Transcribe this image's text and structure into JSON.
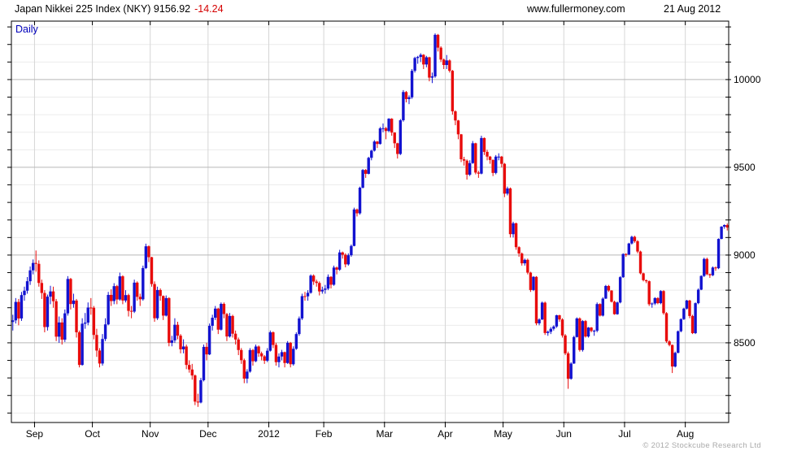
{
  "header": {
    "title": "Japan Nikkei 225 Index (NKY) 9156.92",
    "change": "-14.24",
    "website": "www.fullermoney.com",
    "date": "21 Aug 2012"
  },
  "chart_data": {
    "type": "candlestick",
    "title": "Japan Nikkei 225 Index (NKY)",
    "frequency": "Daily",
    "copyright": "© 2012 Stockcube Research Ltd",
    "last_price": 9156.92,
    "change": -14.24,
    "colors": {
      "up": "#1212d0",
      "down": "#e80b0b",
      "grid_minor": "#ececec",
      "grid_major": "#b8b8b8",
      "grid_month": "#d6d6d6",
      "frame": "#000000",
      "frequency_label": "#0000bb",
      "title_change": "#d40000",
      "copyright": "#aaaaaa"
    },
    "y_axis": {
      "side": "right",
      "tick_labels": [
        10000,
        9500,
        9000,
        8500
      ],
      "minor_step": 100,
      "range": [
        8046,
        10333
      ]
    },
    "x_axis": {
      "labels": [
        "Sep",
        "Oct",
        "Nov",
        "Dec",
        "2012",
        "Feb",
        "Mar",
        "Apr",
        "May",
        "Jun",
        "Jul",
        "Aug"
      ],
      "month_start_indices": [
        8,
        28,
        48,
        68,
        89,
        108,
        129,
        150,
        170,
        191,
        212,
        233
      ]
    },
    "candles": [
      [
        8619,
        8660,
        8570,
        8628
      ],
      [
        8628,
        8755,
        8610,
        8733
      ],
      [
        8733,
        8750,
        8600,
        8639
      ],
      [
        8639,
        8790,
        8625,
        8772
      ],
      [
        8772,
        8820,
        8740,
        8797
      ],
      [
        8797,
        8875,
        8780,
        8851
      ],
      [
        8851,
        8935,
        8830,
        8913
      ],
      [
        8913,
        8975,
        8890,
        8955
      ],
      [
        8955,
        9026,
        8905,
        8950
      ],
      [
        8950,
        8970,
        8820,
        8841
      ],
      [
        8841,
        8860,
        8750,
        8784
      ],
      [
        8784,
        8800,
        8560,
        8590
      ],
      [
        8590,
        8775,
        8570,
        8763
      ],
      [
        8763,
        8825,
        8720,
        8793
      ],
      [
        8793,
        8820,
        8700,
        8737
      ],
      [
        8737,
        8750,
        8510,
        8535
      ],
      [
        8535,
        8650,
        8500,
        8616
      ],
      [
        8616,
        8640,
        8490,
        8518
      ],
      [
        8518,
        8690,
        8505,
        8668
      ],
      [
        8668,
        8880,
        8655,
        8864
      ],
      [
        8864,
        8870,
        8690,
        8721
      ],
      [
        8721,
        8780,
        8700,
        8741
      ],
      [
        8741,
        8750,
        8530,
        8560
      ],
      [
        8560,
        8570,
        8360,
        8374
      ],
      [
        8374,
        8640,
        8370,
        8609
      ],
      [
        8609,
        8670,
        8580,
        8615
      ],
      [
        8615,
        8730,
        8600,
        8701
      ],
      [
        8701,
        8755,
        8660,
        8700
      ],
      [
        8700,
        8710,
        8520,
        8545
      ],
      [
        8545,
        8580,
        8420,
        8456
      ],
      [
        8456,
        8470,
        8360,
        8382
      ],
      [
        8382,
        8550,
        8370,
        8522
      ],
      [
        8522,
        8640,
        8510,
        8605
      ],
      [
        8605,
        8790,
        8600,
        8773
      ],
      [
        8773,
        8805,
        8710,
        8738
      ],
      [
        8738,
        8840,
        8720,
        8823
      ],
      [
        8823,
        8830,
        8720,
        8747
      ],
      [
        8747,
        8900,
        8740,
        8879
      ],
      [
        8879,
        8885,
        8720,
        8741
      ],
      [
        8741,
        8800,
        8730,
        8772
      ],
      [
        8772,
        8780,
        8650,
        8682
      ],
      [
        8682,
        8710,
        8640,
        8678
      ],
      [
        8678,
        8860,
        8670,
        8843
      ],
      [
        8843,
        8850,
        8740,
        8762
      ],
      [
        8762,
        8780,
        8710,
        8748
      ],
      [
        8748,
        8940,
        8740,
        8926
      ],
      [
        8926,
        9065,
        8920,
        9050
      ],
      [
        9050,
        9055,
        8960,
        8988
      ],
      [
        8988,
        8990,
        8820,
        8835
      ],
      [
        8835,
        8850,
        8620,
        8640
      ],
      [
        8640,
        8820,
        8630,
        8801
      ],
      [
        8801,
        8810,
        8740,
        8767
      ],
      [
        8767,
        8770,
        8630,
        8655
      ],
      [
        8655,
        8770,
        8650,
        8755
      ],
      [
        8755,
        8760,
        8480,
        8500
      ],
      [
        8500,
        8540,
        8480,
        8514
      ],
      [
        8514,
        8640,
        8500,
        8603
      ],
      [
        8603,
        8620,
        8520,
        8541
      ],
      [
        8541,
        8550,
        8440,
        8463
      ],
      [
        8463,
        8520,
        8440,
        8479
      ],
      [
        8479,
        8490,
        8350,
        8374
      ],
      [
        8374,
        8400,
        8330,
        8348
      ],
      [
        8348,
        8380,
        8290,
        8314
      ],
      [
        8314,
        8320,
        8145,
        8165
      ],
      [
        8165,
        8210,
        8135,
        8160
      ],
      [
        8160,
        8300,
        8155,
        8287
      ],
      [
        8287,
        8490,
        8280,
        8477
      ],
      [
        8477,
        8500,
        8400,
        8434
      ],
      [
        8434,
        8610,
        8430,
        8597
      ],
      [
        8597,
        8660,
        8570,
        8643
      ],
      [
        8643,
        8710,
        8630,
        8695
      ],
      [
        8695,
        8700,
        8550,
        8575
      ],
      [
        8575,
        8730,
        8570,
        8722
      ],
      [
        8722,
        8730,
        8640,
        8664
      ],
      [
        8664,
        8670,
        8510,
        8536
      ],
      [
        8536,
        8670,
        8530,
        8653
      ],
      [
        8653,
        8660,
        8530,
        8552
      ],
      [
        8552,
        8570,
        8490,
        8519
      ],
      [
        8519,
        8530,
        8430,
        8459
      ],
      [
        8459,
        8470,
        8380,
        8401
      ],
      [
        8401,
        8410,
        8270,
        8296
      ],
      [
        8296,
        8350,
        8270,
        8336
      ],
      [
        8336,
        8470,
        8330,
        8459
      ],
      [
        8459,
        8465,
        8370,
        8395
      ],
      [
        8395,
        8490,
        8390,
        8479
      ],
      [
        8479,
        8485,
        8420,
        8440
      ],
      [
        8440,
        8450,
        8400,
        8423
      ],
      [
        8423,
        8430,
        8380,
        8398
      ],
      [
        8398,
        8470,
        8390,
        8455
      ],
      [
        8455,
        8570,
        8450,
        8560
      ],
      [
        8560,
        8565,
        8470,
        8488
      ],
      [
        8488,
        8500,
        8370,
        8390
      ],
      [
        8390,
        8440,
        8360,
        8422
      ],
      [
        8422,
        8460,
        8400,
        8447
      ],
      [
        8447,
        8450,
        8360,
        8385
      ],
      [
        8385,
        8510,
        8380,
        8500
      ],
      [
        8500,
        8505,
        8360,
        8378
      ],
      [
        8378,
        8480,
        8370,
        8466
      ],
      [
        8466,
        8560,
        8460,
        8550
      ],
      [
        8550,
        8650,
        8540,
        8639
      ],
      [
        8639,
        8780,
        8630,
        8766
      ],
      [
        8766,
        8790,
        8740,
        8765
      ],
      [
        8765,
        8800,
        8740,
        8785
      ],
      [
        8785,
        8890,
        8780,
        8883
      ],
      [
        8883,
        8890,
        8830,
        8849
      ],
      [
        8849,
        8860,
        8820,
        8841
      ],
      [
        8841,
        8850,
        8770,
        8793
      ],
      [
        8793,
        8820,
        8780,
        8802
      ],
      [
        8802,
        8830,
        8780,
        8809
      ],
      [
        8809,
        8890,
        8800,
        8876
      ],
      [
        8876,
        8880,
        8810,
        8831
      ],
      [
        8831,
        8940,
        8825,
        8929
      ],
      [
        8929,
        8935,
        8890,
        8917
      ],
      [
        8917,
        9030,
        8910,
        9015
      ],
      [
        9015,
        9020,
        8980,
        9002
      ],
      [
        9002,
        9010,
        8930,
        8947
      ],
      [
        8947,
        9010,
        8940,
        8999
      ],
      [
        8999,
        9060,
        8990,
        9052
      ],
      [
        9052,
        9270,
        9050,
        9260
      ],
      [
        9260,
        9265,
        9220,
        9238
      ],
      [
        9238,
        9390,
        9230,
        9384
      ],
      [
        9384,
        9490,
        9380,
        9485
      ],
      [
        9485,
        9490,
        9440,
        9463
      ],
      [
        9463,
        9560,
        9460,
        9554
      ],
      [
        9554,
        9600,
        9540,
        9595
      ],
      [
        9595,
        9655,
        9590,
        9647
      ],
      [
        9647,
        9650,
        9610,
        9633
      ],
      [
        9633,
        9730,
        9630,
        9722
      ],
      [
        9722,
        9750,
        9700,
        9723
      ],
      [
        9723,
        9730,
        9660,
        9707
      ],
      [
        9707,
        9780,
        9700,
        9777
      ],
      [
        9777,
        9780,
        9680,
        9698
      ],
      [
        9698,
        9700,
        9610,
        9637
      ],
      [
        9637,
        9640,
        9550,
        9576
      ],
      [
        9576,
        9775,
        9570,
        9768
      ],
      [
        9768,
        9940,
        9760,
        9929
      ],
      [
        9929,
        9935,
        9870,
        9889
      ],
      [
        9889,
        9910,
        9860,
        9899
      ],
      [
        9899,
        10060,
        9890,
        10050
      ],
      [
        10050,
        10130,
        10040,
        10123
      ],
      [
        10123,
        10135,
        10090,
        10129
      ],
      [
        10129,
        10150,
        10100,
        10141
      ],
      [
        10141,
        10145,
        10060,
        10086
      ],
      [
        10086,
        10135,
        10070,
        10127
      ],
      [
        10127,
        10130,
        9990,
        10011
      ],
      [
        10011,
        10040,
        9980,
        10018
      ],
      [
        10018,
        10263,
        10010,
        10255
      ],
      [
        10255,
        10260,
        10160,
        10182
      ],
      [
        10182,
        10190,
        10100,
        10114
      ],
      [
        10114,
        10120,
        10060,
        10083
      ],
      [
        10083,
        10140,
        10060,
        10109
      ],
      [
        10109,
        10115,
        10040,
        10050
      ],
      [
        10050,
        10055,
        9800,
        9819
      ],
      [
        9819,
        9825,
        9740,
        9767
      ],
      [
        9767,
        9770,
        9660,
        9688
      ],
      [
        9688,
        9690,
        9530,
        9546
      ],
      [
        9546,
        9560,
        9510,
        9538
      ],
      [
        9538,
        9545,
        9430,
        9458
      ],
      [
        9458,
        9540,
        9450,
        9524
      ],
      [
        9524,
        9650,
        9520,
        9637
      ],
      [
        9637,
        9640,
        9460,
        9470
      ],
      [
        9470,
        9480,
        9440,
        9464
      ],
      [
        9464,
        9680,
        9460,
        9667
      ],
      [
        9667,
        9670,
        9570,
        9588
      ],
      [
        9588,
        9600,
        9540,
        9561
      ],
      [
        9561,
        9565,
        9520,
        9542
      ],
      [
        9542,
        9545,
        9450,
        9468
      ],
      [
        9468,
        9570,
        9460,
        9561
      ],
      [
        9561,
        9580,
        9540,
        9561
      ],
      [
        9561,
        9565,
        9500,
        9520
      ],
      [
        9520,
        9525,
        9330,
        9350
      ],
      [
        9350,
        9390,
        9340,
        9380
      ],
      [
        9380,
        9385,
        9100,
        9119
      ],
      [
        9119,
        9190,
        9100,
        9181
      ],
      [
        9181,
        9185,
        9030,
        9045
      ],
      [
        9045,
        9050,
        8990,
        9009
      ],
      [
        9009,
        9015,
        8940,
        8953
      ],
      [
        8953,
        8980,
        8940,
        8973
      ],
      [
        8973,
        8980,
        8890,
        8900
      ],
      [
        8900,
        8905,
        8790,
        8801
      ],
      [
        8801,
        8880,
        8795,
        8876
      ],
      [
        8876,
        8880,
        8600,
        8611
      ],
      [
        8611,
        8640,
        8600,
        8633
      ],
      [
        8633,
        8735,
        8630,
        8729
      ],
      [
        8729,
        8735,
        8545,
        8556
      ],
      [
        8556,
        8570,
        8540,
        8563
      ],
      [
        8563,
        8590,
        8550,
        8580
      ],
      [
        8580,
        8600,
        8570,
        8593
      ],
      [
        8593,
        8660,
        8585,
        8657
      ],
      [
        8657,
        8660,
        8620,
        8633
      ],
      [
        8633,
        8640,
        8530,
        8542
      ],
      [
        8542,
        8550,
        8430,
        8440
      ],
      [
        8440,
        8450,
        8238,
        8295
      ],
      [
        8295,
        8390,
        8290,
        8382
      ],
      [
        8382,
        8540,
        8380,
        8533
      ],
      [
        8533,
        8645,
        8530,
        8639
      ],
      [
        8639,
        8645,
        8450,
        8459
      ],
      [
        8459,
        8630,
        8450,
        8624
      ],
      [
        8624,
        8630,
        8530,
        8536
      ],
      [
        8536,
        8590,
        8530,
        8587
      ],
      [
        8587,
        8590,
        8560,
        8568
      ],
      [
        8568,
        8575,
        8540,
        8569
      ],
      [
        8569,
        8730,
        8560,
        8721
      ],
      [
        8721,
        8725,
        8650,
        8655
      ],
      [
        8655,
        8760,
        8650,
        8752
      ],
      [
        8752,
        8830,
        8750,
        8824
      ],
      [
        8824,
        8830,
        8790,
        8798
      ],
      [
        8798,
        8800,
        8730,
        8734
      ],
      [
        8734,
        8740,
        8660,
        8663
      ],
      [
        8663,
        8735,
        8660,
        8730
      ],
      [
        8730,
        8880,
        8725,
        8874
      ],
      [
        8874,
        9010,
        8870,
        9006
      ],
      [
        9006,
        9010,
        8990,
        9003
      ],
      [
        9003,
        9070,
        9000,
        9066
      ],
      [
        9066,
        9110,
        9060,
        9104
      ],
      [
        9104,
        9110,
        9070,
        9079
      ],
      [
        9079,
        9085,
        9010,
        9020
      ],
      [
        9020,
        9025,
        8890,
        8896
      ],
      [
        8896,
        8900,
        8850,
        8857
      ],
      [
        8857,
        8860,
        8840,
        8851
      ],
      [
        8851,
        8855,
        8710,
        8720
      ],
      [
        8720,
        8730,
        8700,
        8724
      ],
      [
        8724,
        8760,
        8715,
        8755
      ],
      [
        8755,
        8760,
        8720,
        8726
      ],
      [
        8726,
        8800,
        8720,
        8795
      ],
      [
        8795,
        8800,
        8660,
        8669
      ],
      [
        8669,
        8675,
        8500,
        8508
      ],
      [
        8508,
        8515,
        8480,
        8488
      ],
      [
        8488,
        8490,
        8328,
        8365
      ],
      [
        8365,
        8450,
        8360,
        8443
      ],
      [
        8443,
        8570,
        8440,
        8566
      ],
      [
        8566,
        8640,
        8560,
        8635
      ],
      [
        8635,
        8700,
        8630,
        8695
      ],
      [
        8695,
        8745,
        8690,
        8741
      ],
      [
        8741,
        8745,
        8640,
        8653
      ],
      [
        8653,
        8660,
        8550,
        8555
      ],
      [
        8555,
        8730,
        8550,
        8726
      ],
      [
        8726,
        8810,
        8720,
        8803
      ],
      [
        8803,
        8885,
        8800,
        8881
      ],
      [
        8881,
        8985,
        8875,
        8978
      ],
      [
        8978,
        8985,
        8885,
        8891
      ],
      [
        8891,
        8895,
        8870,
        8885
      ],
      [
        8885,
        8935,
        8880,
        8929
      ],
      [
        8929,
        8935,
        8910,
        8925
      ],
      [
        8925,
        9095,
        8920,
        9092
      ],
      [
        9092,
        9165,
        9090,
        9162
      ],
      [
        9162,
        9175,
        9150,
        9171
      ],
      [
        9171,
        9180,
        9140,
        9157
      ]
    ]
  }
}
